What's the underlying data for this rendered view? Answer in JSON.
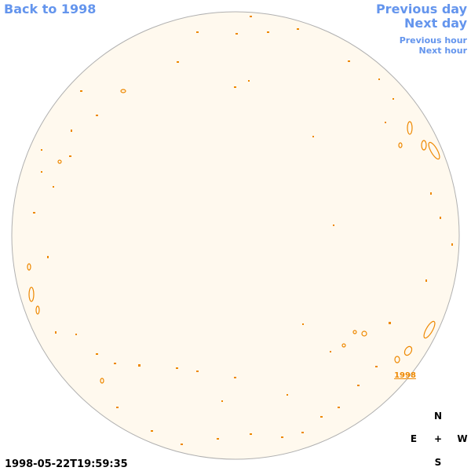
{
  "nav": {
    "back": "Back to 1998",
    "previous_day": "Previous day",
    "next_day": "Next day",
    "previous_hour": "Previous hour",
    "next_hour": "Next hour"
  },
  "map": {
    "year_label": "1998",
    "compass": {
      "north": "N",
      "east": "E",
      "center": "+",
      "west": "W",
      "south": "S"
    },
    "timestamp": "1998-05-22T19:59:35"
  }
}
